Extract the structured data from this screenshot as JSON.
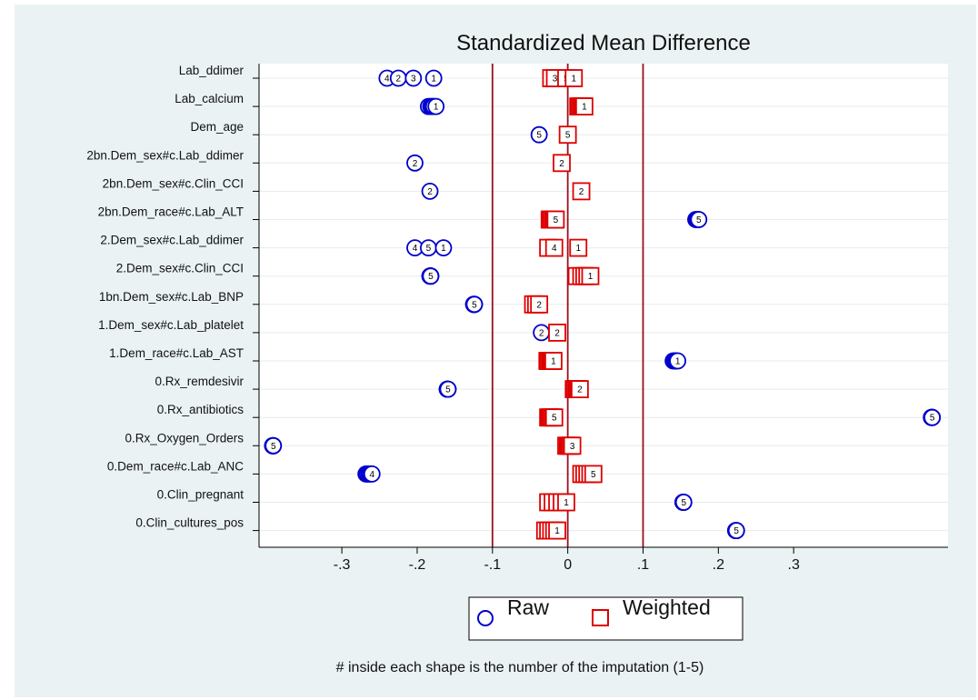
{
  "chart_data": {
    "type": "scatter",
    "title": "Standardized Mean Difference",
    "xlabel": "",
    "ylabel": "",
    "xlim": [
      -0.41,
      0.505
    ],
    "xticks": [
      -0.3,
      -0.2,
      -0.1,
      0,
      0.1,
      0.2,
      0.3
    ],
    "xtick_labels": [
      "-.3",
      "-.2",
      "-.1",
      "0",
      ".1",
      ".2",
      ".3"
    ],
    "reference_lines": [
      -0.1,
      0,
      0.1
    ],
    "grid": true,
    "legend_position": "bottom",
    "note": "# inside each shape is the number of the imputation (1-5)",
    "categories": [
      "Lab_ddimer",
      "Lab_calcium",
      "Dem_age",
      "2bn.Dem_sex#c.Lab_ddimer",
      "2bn.Dem_sex#c.Clin_CCI",
      "2bn.Dem_race#c.Lab_ALT",
      "2.Dem_sex#c.Lab_ddimer",
      "2.Dem_sex#c.Clin_CCI",
      "1bn.Dem_sex#c.Lab_BNP",
      "1.Dem_sex#c.Lab_platelet",
      "1.Dem_race#c.Lab_AST",
      "0.Rx_remdesivir",
      "0.Rx_antibiotics",
      "0.Rx_Oxygen_Orders",
      "0.Dem_race#c.Lab_ANC",
      "0.Clin_pregnant",
      "0.Clin_cultures_pos"
    ],
    "series": [
      {
        "name": "Raw",
        "marker": "circle",
        "color": "#0000cc",
        "points": [
          [
            [
              -0.24,
              "4"
            ],
            [
              -0.225,
              "2"
            ],
            [
              -0.205,
              "3"
            ],
            [
              -0.178,
              "1"
            ]
          ],
          [
            [
              -0.185,
              "5"
            ],
            [
              -0.182,
              "2"
            ],
            [
              -0.18,
              "3"
            ],
            [
              -0.178,
              "4"
            ],
            [
              -0.175,
              "1"
            ]
          ],
          [
            [
              -0.038,
              "5"
            ]
          ],
          [
            [
              -0.203,
              "2"
            ]
          ],
          [
            [
              -0.183,
              "2"
            ]
          ],
          [
            [
              0.17,
              "1"
            ],
            [
              0.171,
              "2"
            ],
            [
              0.172,
              "3"
            ],
            [
              0.173,
              "4"
            ],
            [
              0.174,
              "5"
            ]
          ],
          [
            [
              -0.203,
              "4"
            ],
            [
              -0.185,
              "5"
            ],
            [
              -0.165,
              "1"
            ]
          ],
          [
            [
              -0.183,
              "1"
            ],
            [
              -0.183,
              "2"
            ],
            [
              -0.182,
              "3"
            ],
            [
              -0.182,
              "4"
            ],
            [
              -0.182,
              "5"
            ]
          ],
          [
            [
              -0.125,
              "1"
            ],
            [
              -0.125,
              "2"
            ],
            [
              -0.124,
              "3"
            ],
            [
              -0.124,
              "4"
            ],
            [
              -0.124,
              "5"
            ]
          ],
          [
            [
              -0.035,
              "2"
            ]
          ],
          [
            [
              0.14,
              "2"
            ],
            [
              0.142,
              "3"
            ],
            [
              0.143,
              "4"
            ],
            [
              0.144,
              "5"
            ],
            [
              0.146,
              "1"
            ]
          ],
          [
            [
              -0.16,
              "1"
            ],
            [
              -0.16,
              "2"
            ],
            [
              -0.16,
              "3"
            ],
            [
              -0.159,
              "4"
            ],
            [
              -0.159,
              "5"
            ]
          ],
          [
            [
              0.483,
              "1"
            ],
            [
              0.483,
              "2"
            ],
            [
              0.484,
              "3"
            ],
            [
              0.484,
              "4"
            ],
            [
              0.484,
              "5"
            ]
          ],
          [
            [
              -0.392,
              "1"
            ],
            [
              -0.392,
              "2"
            ],
            [
              -0.391,
              "3"
            ],
            [
              -0.391,
              "4"
            ],
            [
              -0.391,
              "5"
            ]
          ],
          [
            [
              -0.268,
              "5"
            ],
            [
              -0.266,
              "3"
            ],
            [
              -0.264,
              "1"
            ],
            [
              -0.262,
              "2"
            ],
            [
              -0.26,
              "4"
            ]
          ],
          [
            [
              0.153,
              "1"
            ],
            [
              0.153,
              "2"
            ],
            [
              0.154,
              "3"
            ],
            [
              0.154,
              "4"
            ],
            [
              0.154,
              "5"
            ]
          ],
          [
            [
              0.223,
              "1"
            ],
            [
              0.223,
              "2"
            ],
            [
              0.224,
              "3"
            ],
            [
              0.224,
              "4"
            ],
            [
              0.224,
              "5"
            ]
          ]
        ]
      },
      {
        "name": "Weighted",
        "marker": "square",
        "color": "#dd0000",
        "points": [
          [
            [
              -0.022,
              "4"
            ],
            [
              -0.017,
              "3"
            ],
            [
              -0.002,
              "5"
            ],
            [
              0.008,
              "1"
            ]
          ],
          [
            [
              0.014,
              "4"
            ],
            [
              0.016,
              "5"
            ],
            [
              0.018,
              "2"
            ],
            [
              0.02,
              "3"
            ],
            [
              0.022,
              "1"
            ]
          ],
          [
            [
              0.0,
              "5"
            ]
          ],
          [
            [
              -0.008,
              "2"
            ]
          ],
          [
            [
              0.018,
              "2"
            ]
          ],
          [
            [
              -0.024,
              "1"
            ],
            [
              -0.022,
              "2"
            ],
            [
              -0.02,
              "3"
            ],
            [
              -0.018,
              "4"
            ],
            [
              -0.016,
              "5"
            ]
          ],
          [
            [
              -0.026,
              "5"
            ],
            [
              -0.018,
              "4"
            ],
            [
              0.014,
              "1"
            ]
          ],
          [
            [
              0.012,
              "4"
            ],
            [
              0.018,
              "5"
            ],
            [
              0.022,
              "2"
            ],
            [
              0.026,
              "3"
            ],
            [
              0.03,
              "1"
            ]
          ],
          [
            [
              -0.046,
              "1"
            ],
            [
              -0.042,
              "5"
            ],
            [
              -0.038,
              "2"
            ]
          ],
          [
            [
              -0.014,
              "2"
            ]
          ],
          [
            [
              -0.027,
              "2"
            ],
            [
              -0.025,
              "5"
            ],
            [
              -0.023,
              "3"
            ],
            [
              -0.021,
              "4"
            ],
            [
              -0.019,
              "1"
            ]
          ],
          [
            [
              0.008,
              "4"
            ],
            [
              0.01,
              "3"
            ],
            [
              0.012,
              "5"
            ],
            [
              0.014,
              "1"
            ],
            [
              0.016,
              "2"
            ]
          ],
          [
            [
              -0.026,
              "1"
            ],
            [
              -0.024,
              "3"
            ],
            [
              -0.022,
              "2"
            ],
            [
              -0.02,
              "4"
            ],
            [
              -0.018,
              "5"
            ]
          ],
          [
            [
              -0.002,
              "2"
            ],
            [
              0.0,
              "4"
            ],
            [
              0.002,
              "5"
            ],
            [
              0.004,
              "1"
            ],
            [
              0.006,
              "3"
            ]
          ],
          [
            [
              0.018,
              "4"
            ],
            [
              0.022,
              "2"
            ],
            [
              0.026,
              "1"
            ],
            [
              0.03,
              "3"
            ],
            [
              0.034,
              "5"
            ]
          ],
          [
            [
              -0.026,
              "5"
            ],
            [
              -0.02,
              "3"
            ],
            [
              -0.014,
              "4"
            ],
            [
              -0.008,
              "2"
            ],
            [
              -0.002,
              "1"
            ]
          ],
          [
            [
              -0.03,
              "5"
            ],
            [
              -0.026,
              "2"
            ],
            [
              -0.022,
              "3"
            ],
            [
              -0.018,
              "4"
            ],
            [
              -0.014,
              "1"
            ]
          ]
        ]
      }
    ]
  }
}
